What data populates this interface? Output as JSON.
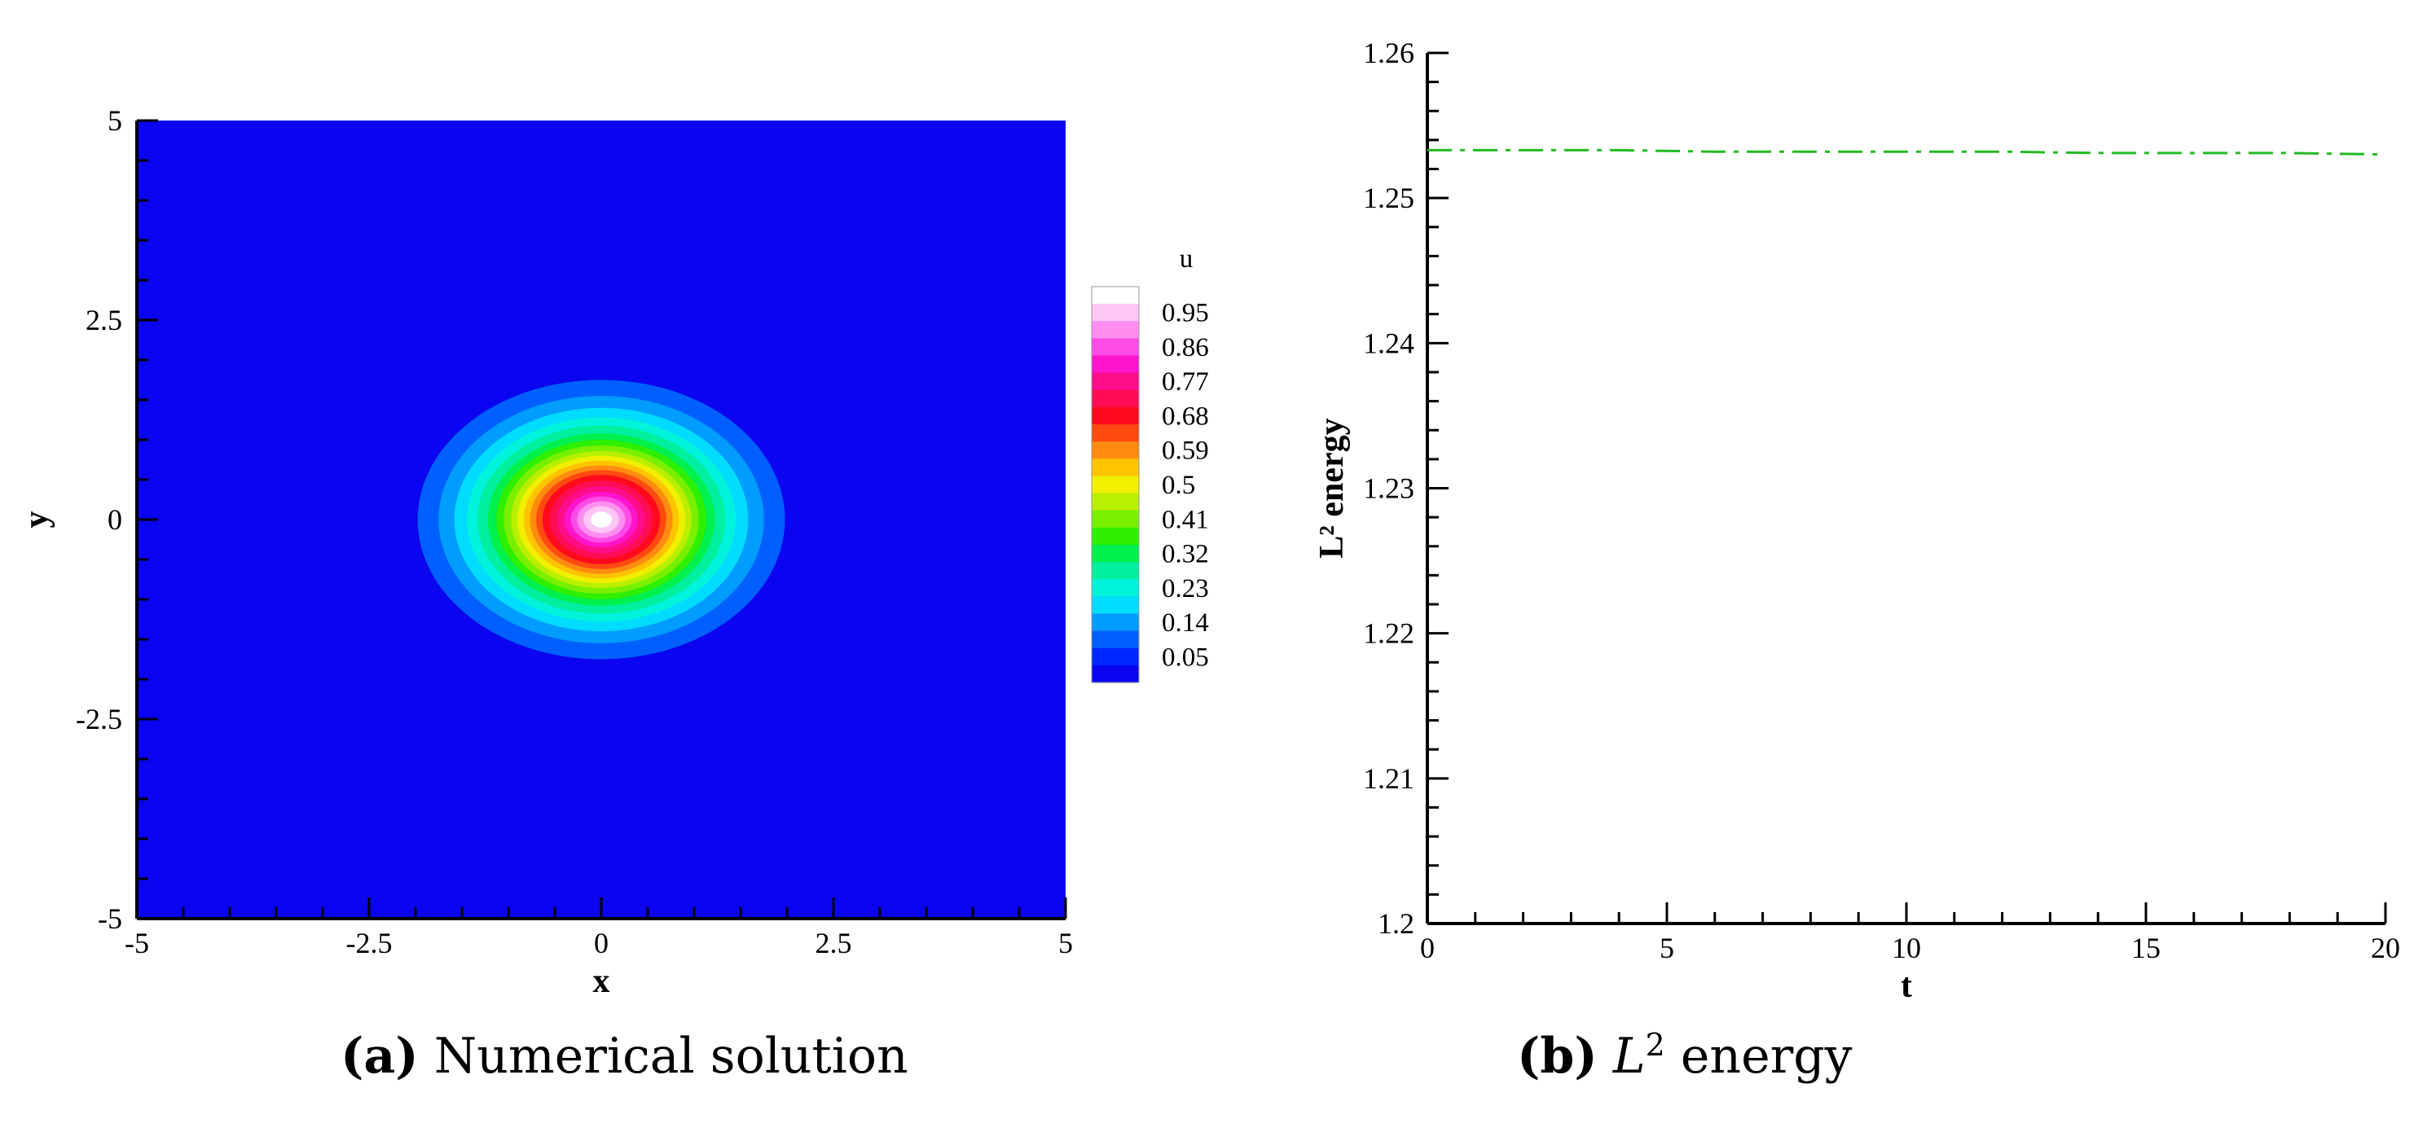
{
  "chart_data": [
    {
      "type": "heatmap",
      "xlabel": "x",
      "ylabel": "y",
      "xlim": [
        -5,
        5
      ],
      "ylim": [
        -5,
        5
      ],
      "x_ticks": [
        "-5",
        "-2.5",
        "0",
        "2.5",
        "5"
      ],
      "y_ticks": [
        "-5",
        "-2.5",
        "0",
        "2.5",
        "5"
      ],
      "field": "u",
      "center": [
        0,
        0
      ],
      "colorbar": {
        "title": "u",
        "labels": [
          "0.95",
          "0.86",
          "0.77",
          "0.68",
          "0.59",
          "0.5",
          "0.41",
          "0.32",
          "0.23",
          "0.14",
          "0.05"
        ],
        "levels_top_to_bottom": [
          {
            "value": 0.995,
            "color": "#ffffff"
          },
          {
            "value": 0.95,
            "color": "#ffc6f4"
          },
          {
            "value": 0.905,
            "color": "#ff8ef0"
          },
          {
            "value": 0.86,
            "color": "#ff4ce6"
          },
          {
            "value": 0.815,
            "color": "#ff14cc"
          },
          {
            "value": 0.77,
            "color": "#ff0c8a"
          },
          {
            "value": 0.725,
            "color": "#ff0c56"
          },
          {
            "value": 0.68,
            "color": "#ff0a1c"
          },
          {
            "value": 0.635,
            "color": "#ff4a10"
          },
          {
            "value": 0.59,
            "color": "#ff8c10"
          },
          {
            "value": 0.545,
            "color": "#ffc400"
          },
          {
            "value": 0.5,
            "color": "#f0f000"
          },
          {
            "value": 0.455,
            "color": "#b8f000"
          },
          {
            "value": 0.41,
            "color": "#78f000"
          },
          {
            "value": 0.365,
            "color": "#2ef000"
          },
          {
            "value": 0.32,
            "color": "#00f04e"
          },
          {
            "value": 0.275,
            "color": "#00f0a0"
          },
          {
            "value": 0.23,
            "color": "#00f4dc"
          },
          {
            "value": 0.185,
            "color": "#00dcff"
          },
          {
            "value": 0.14,
            "color": "#009cff"
          },
          {
            "value": 0.095,
            "color": "#0060ff"
          },
          {
            "value": 0.05,
            "color": "#0026ff"
          },
          {
            "value": 0.005,
            "color": "#0a04f0"
          }
        ]
      },
      "background_color": "#0a04f0",
      "contour_radii": [
        {
          "r": 1.75,
          "color": "#0060ff"
        },
        {
          "r": 1.55,
          "color": "#009cff"
        },
        {
          "r": 1.4,
          "color": "#00dcff"
        },
        {
          "r": 1.28,
          "color": "#00f4dc"
        },
        {
          "r": 1.18,
          "color": "#00f0a0"
        },
        {
          "r": 1.08,
          "color": "#00f04e"
        },
        {
          "r": 1.0,
          "color": "#2ef000"
        },
        {
          "r": 0.93,
          "color": "#78f000"
        },
        {
          "r": 0.86,
          "color": "#b8f000"
        },
        {
          "r": 0.8,
          "color": "#f0f000"
        },
        {
          "r": 0.74,
          "color": "#ffc400"
        },
        {
          "r": 0.68,
          "color": "#ff8c10"
        },
        {
          "r": 0.62,
          "color": "#ff4a10"
        },
        {
          "r": 0.56,
          "color": "#ff0a1c"
        },
        {
          "r": 0.49,
          "color": "#ff0c56"
        },
        {
          "r": 0.42,
          "color": "#ff0c8a"
        },
        {
          "r": 0.35,
          "color": "#ff14cc"
        },
        {
          "r": 0.29,
          "color": "#ff4ce6"
        },
        {
          "r": 0.23,
          "color": "#ff8ef0"
        },
        {
          "r": 0.17,
          "color": "#ffc6f4"
        },
        {
          "r": 0.1,
          "color": "#ffffff"
        }
      ]
    },
    {
      "type": "line",
      "xlabel": "t",
      "ylabel": "L² energy",
      "xlim": [
        0,
        20
      ],
      "ylim": [
        1.2,
        1.26
      ],
      "x_ticks": [
        "0",
        "5",
        "10",
        "15",
        "20"
      ],
      "y_ticks": [
        "1.2",
        "1.21",
        "1.22",
        "1.23",
        "1.24",
        "1.25",
        "1.26"
      ],
      "series": [
        {
          "color": "#22bb22",
          "dash": "dash-dot",
          "x": [
            0,
            2,
            4,
            6,
            8,
            10,
            12,
            14,
            16,
            18,
            20
          ],
          "y": [
            1.2533,
            1.2533,
            1.2533,
            1.2532,
            1.2532,
            1.2532,
            1.2532,
            1.2531,
            1.2531,
            1.2531,
            1.253
          ]
        }
      ]
    }
  ],
  "captions": {
    "a": {
      "tag": "(a)",
      "text": " Numerical solution"
    },
    "b": {
      "tag": "(b)",
      "math": "L",
      "sup": "2",
      "text": " energy"
    }
  }
}
